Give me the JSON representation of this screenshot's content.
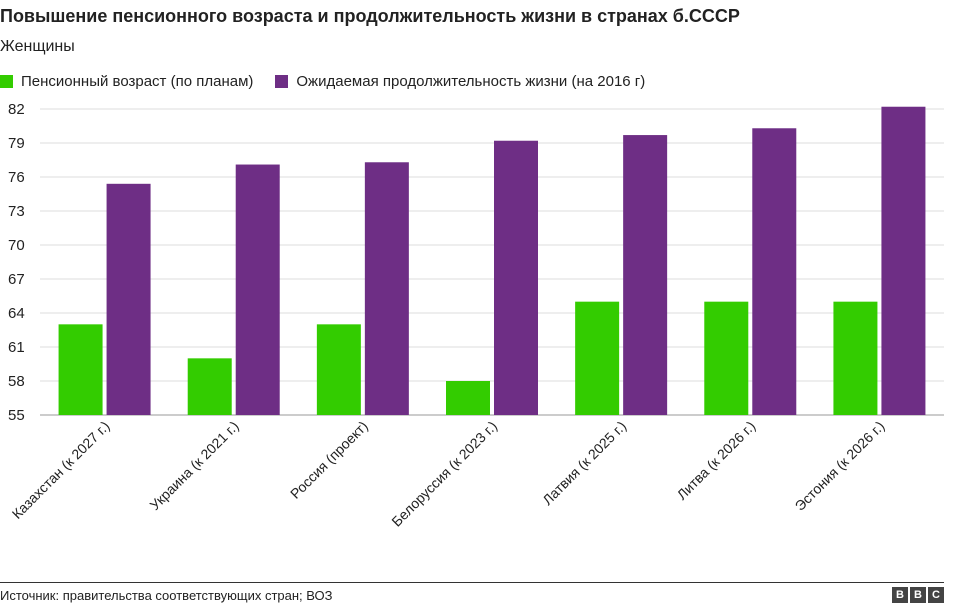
{
  "header": {
    "title": "Повышение пенсионного возраста и продолжительность жизни в странах б.СССР",
    "subtitle": "Женщины"
  },
  "footer": {
    "source": "Источник: правительства соответствующих стран; ВОЗ",
    "logo": [
      "B",
      "B",
      "C"
    ]
  },
  "chart_data": {
    "type": "bar",
    "categories": [
      "Казахстан (к 2027 г.)",
      "Украина (к 2021 г.)",
      "Россия (проект)",
      "Белоруссия (к 2023 г.)",
      "Латвия (к 2025 г.)",
      "Литва (к 2026 г.)",
      "Эстония (к 2026 г.)"
    ],
    "series": [
      {
        "name": "Пенсионный возраст (по планам)",
        "color": "#33cc00",
        "values": [
          63,
          60,
          63,
          58,
          65,
          65,
          65
        ]
      },
      {
        "name": "Ожидаемая продолжительность жизни (на 2016 г)",
        "color": "#6e2e85",
        "values": [
          75.4,
          77.1,
          77.3,
          79.2,
          79.7,
          80.3,
          82.2
        ]
      }
    ],
    "y_ticks": [
      55,
      58,
      61,
      64,
      67,
      70,
      73,
      76,
      79,
      82
    ],
    "ylim": [
      55,
      82
    ],
    "grid": true,
    "legend": "top-left"
  }
}
